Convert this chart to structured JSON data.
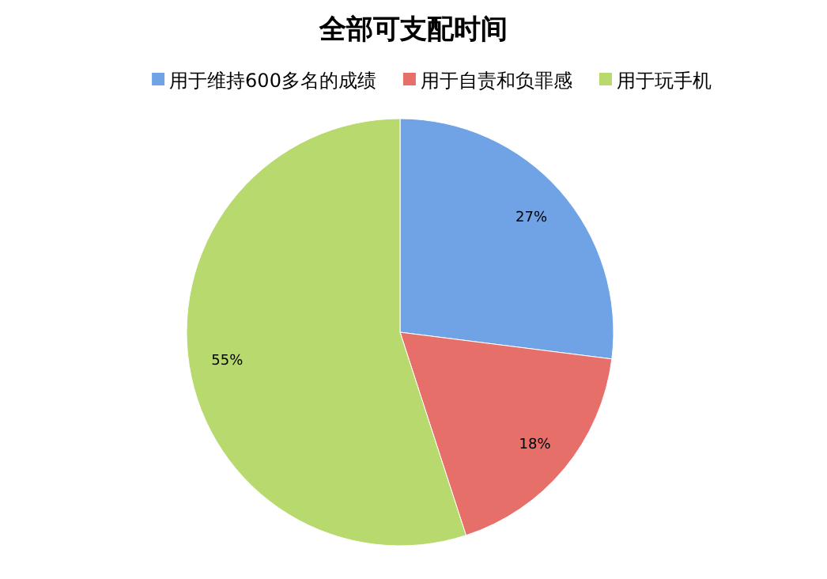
{
  "chart_data": {
    "type": "pie",
    "title": "全部可支配时间",
    "categories": [
      "用于维持600多名的成绩",
      "用于自责和负罪感",
      "用于玩手机"
    ],
    "values": [
      27,
      18,
      55
    ],
    "colors": [
      "#6fa3e6",
      "#e66f6a",
      "#b8d96e"
    ],
    "value_labels": [
      "27%",
      "18%",
      "55%"
    ],
    "legend": "top"
  }
}
